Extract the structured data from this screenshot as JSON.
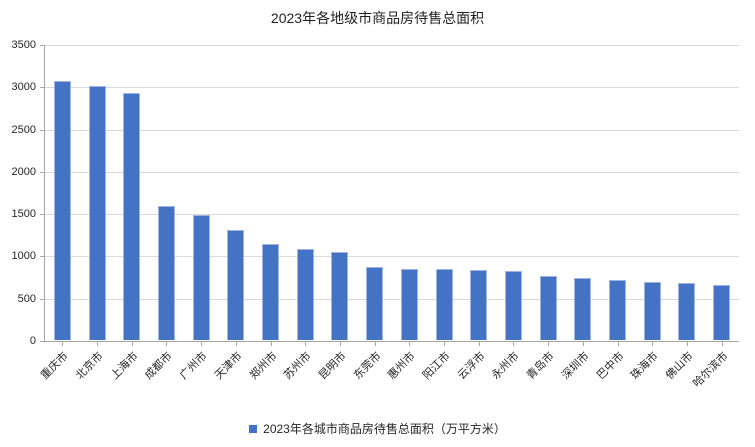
{
  "title": "2023年各地级市商品房待售总面积",
  "legend": {
    "label": "2023年各城市商品房待售总面积（万平方米）",
    "marker_color": "#4472C4"
  },
  "chart_data": {
    "type": "bar",
    "title": "2023年各地级市商品房待售总面积",
    "categories": [
      "重庆市",
      "北京市",
      "上海市",
      "成都市",
      "广州市",
      "天津市",
      "郑州市",
      "苏州市",
      "昆明市",
      "东莞市",
      "惠州市",
      "阳江市",
      "云浮市",
      "永州市",
      "青岛市",
      "深圳市",
      "巴中市",
      "珠海市",
      "佛山市",
      "哈尔滨市"
    ],
    "values": [
      3060,
      3000,
      2920,
      1580,
      1480,
      1300,
      1140,
      1075,
      1040,
      860,
      845,
      835,
      825,
      820,
      760,
      730,
      705,
      685,
      680,
      650
    ],
    "series_name": "2023年各城市商品房待售总面积（万平方米）",
    "xlabel": "",
    "ylabel": "",
    "ylim": [
      0,
      3500
    ],
    "yticks": [
      0,
      500,
      1000,
      1500,
      2000,
      2500,
      3000,
      3500
    ],
    "grid": true,
    "legend_position": "bottom",
    "colors": {
      "bar": "#4472C4",
      "bar_border": "#9FB4E0",
      "gridline": "#D9D9D9",
      "axis": "#A6A6A6",
      "text": "#262626"
    }
  }
}
